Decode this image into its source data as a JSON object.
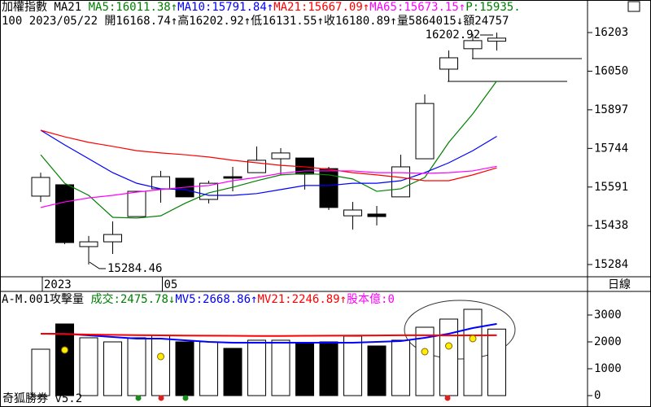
{
  "chart_data": [
    {
      "type": "candlestick",
      "title": "加權指數 MA21",
      "p_label": "P:15935.",
      "info": "100 2023/05/22 開16168.74↑高16202.92↑低16131.55↑收16180.89↑量5864015↓額24757",
      "period": "日線",
      "categories": [
        "2023",
        null,
        null,
        null,
        null,
        "05",
        null,
        null,
        null,
        null,
        null,
        null,
        null,
        null,
        null,
        null,
        null,
        null,
        null,
        null
      ],
      "open": [
        15555,
        15600,
        15355,
        15374,
        15474,
        15584,
        15626,
        15542,
        15632,
        15648,
        15703,
        15706,
        15664,
        15477,
        15484,
        15552,
        15703,
        16058,
        16139,
        16168.74
      ],
      "high": [
        15648,
        15600,
        15397,
        15455,
        15574,
        15655,
        15626,
        15616,
        15671,
        15752,
        15745,
        15706,
        15671,
        15532,
        15516,
        15719,
        15958,
        16132,
        16197,
        16202.92
      ],
      "low": [
        15532,
        15365,
        15284.46,
        15326,
        15474,
        15529,
        15552,
        15526,
        15574,
        15648,
        15639,
        15581,
        15500,
        15423,
        15439,
        15552,
        15703,
        16010,
        16100,
        16131.55
      ],
      "close": [
        15629,
        15371,
        15374,
        15403,
        15574,
        15632,
        15552,
        15606,
        15626,
        15697,
        15726,
        15642,
        15510,
        15500,
        15474,
        15671,
        15922,
        16103,
        16171,
        16180.89
      ],
      "up_color": "#ffffff",
      "down_color": "#000000",
      "series": [
        {
          "name": "MA5:16011.38↑",
          "color": "#008000",
          "values": [
            15719,
            15606,
            15558,
            15471,
            15468,
            15477,
            15526,
            15568,
            15590,
            15616,
            15639,
            15645,
            15639,
            15623,
            15574,
            15584,
            15629,
            15768,
            15881,
            16011.38
          ]
        },
        {
          "name": "MA10:15791.84↑",
          "color": "#0000ff",
          "values": [
            15816,
            15758,
            15703,
            15648,
            15606,
            15584,
            15581,
            15558,
            15558,
            15565,
            15581,
            15597,
            15597,
            15606,
            15606,
            15616,
            15648,
            15687,
            15735,
            15791.84
          ]
        },
        {
          "name": "MA21:15667.09↑",
          "color": "#ff0000",
          "values": [
            15816,
            15790,
            15768,
            15752,
            15735,
            15726,
            15719,
            15710,
            15697,
            15687,
            15677,
            15671,
            15661,
            15648,
            15639,
            15629,
            15616,
            15616,
            15639,
            15667.09
          ]
        },
        {
          "name": "MA65:15673.15↑",
          "color": "#ff00ff",
          "values": [
            15510,
            15532,
            15548,
            15558,
            15571,
            15581,
            15590,
            15597,
            15616,
            15629,
            15645,
            15655,
            15655,
            15655,
            15648,
            15648,
            15645,
            15648,
            15655,
            15673.15
          ]
        }
      ],
      "ylim": [
        15242,
        16261
      ],
      "yticks": [
        16203,
        16050,
        15897,
        15744,
        15591,
        15438,
        15284
      ]
    },
    {
      "type": "bar",
      "title": "A-M.001攻擊量",
      "volume_label": "成交:2475.78↓",
      "capital_label": "股本億:0",
      "footer": "奇狐勝券 v5.2",
      "values": [
        1727,
        2667,
        2152,
        2000,
        2152,
        2242,
        2000,
        2000,
        1758,
        2061,
        2061,
        1939,
        2000,
        2212,
        1848,
        2061,
        2545,
        2848,
        3212,
        2475.78
      ],
      "markers": {
        "color": "#ffee00",
        "values": [
          null,
          1697,
          null,
          null,
          null,
          1455,
          null,
          null,
          null,
          null,
          null,
          null,
          null,
          null,
          null,
          null,
          1636,
          1848,
          2121,
          null
        ]
      },
      "series": [
        {
          "name": "MV5:2668.86↑",
          "color": "#0000ff",
          "values": [
            2303,
            2303,
            2242,
            2182,
            2121,
            2121,
            2061,
            2000,
            1970,
            1970,
            1970,
            1970,
            1970,
            1970,
            2000,
            2030,
            2152,
            2303,
            2515,
            2668.86
          ]
        },
        {
          "name": "MV21:2246.89↑",
          "color": "#ff0000",
          "values": [
            2303,
            2290,
            2273,
            2260,
            2250,
            2242,
            2235,
            2230,
            2225,
            2220,
            2220,
            2225,
            2230,
            2235,
            2240,
            2245,
            2245,
            2240,
            2242,
            2246.89
          ]
        }
      ],
      "ylim": [
        -182,
        3757
      ],
      "yticks": [
        3000,
        2000,
        1000,
        0
      ]
    }
  ]
}
